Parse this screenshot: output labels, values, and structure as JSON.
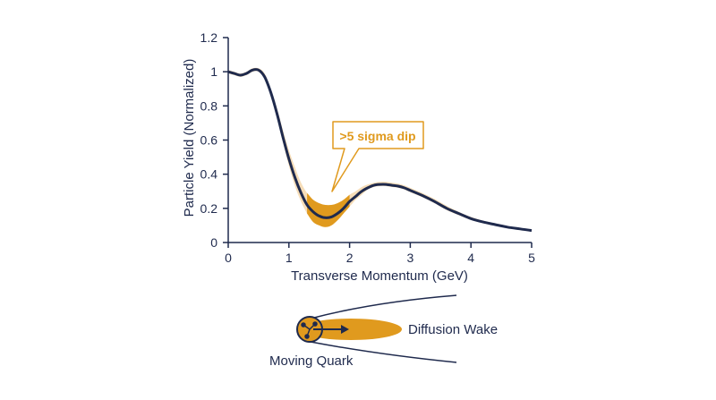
{
  "chart_data": {
    "type": "line",
    "title": "",
    "xlabel": "Transverse Momentum (GeV)",
    "ylabel": "Particle Yield (Normalized)",
    "xlim": [
      0,
      5
    ],
    "ylim": [
      0,
      1.2
    ],
    "x_ticks": [
      "0",
      "1",
      "2",
      "3",
      "4",
      "5"
    ],
    "y_ticks": [
      "0",
      "0.2",
      "0.4",
      "0.6",
      "0.8",
      "1",
      "1.2"
    ],
    "grid": false,
    "series": [
      {
        "x": [
          0,
          0.1,
          0.2,
          0.3,
          0.4,
          0.5,
          0.6,
          0.7,
          0.8,
          0.9,
          1.0,
          1.1,
          1.2,
          1.3,
          1.4,
          1.5,
          1.6,
          1.7,
          1.8,
          1.9,
          2.0,
          2.1,
          2.2,
          2.3,
          2.4,
          2.5,
          2.6,
          2.7,
          2.8,
          2.9,
          3.0,
          3.2,
          3.4,
          3.6,
          3.8,
          4.0,
          4.2,
          4.4,
          4.6,
          4.8,
          5.0
        ],
        "y": [
          1.0,
          0.99,
          0.98,
          0.99,
          1.01,
          1.01,
          0.97,
          0.88,
          0.76,
          0.62,
          0.49,
          0.38,
          0.29,
          0.22,
          0.18,
          0.155,
          0.145,
          0.15,
          0.17,
          0.2,
          0.24,
          0.27,
          0.3,
          0.32,
          0.335,
          0.34,
          0.34,
          0.335,
          0.33,
          0.32,
          0.305,
          0.275,
          0.24,
          0.2,
          0.17,
          0.14,
          0.12,
          0.105,
          0.09,
          0.08,
          0.07
        ],
        "band_lower": [
          0.99,
          0.98,
          0.97,
          0.98,
          1.0,
          1.0,
          0.96,
          0.87,
          0.74,
          0.59,
          0.45,
          0.33,
          0.24,
          0.17,
          0.12,
          0.1,
          0.09,
          0.1,
          0.13,
          0.17,
          0.21,
          0.25,
          0.28,
          0.31,
          0.325,
          0.33,
          0.33,
          0.325,
          0.32,
          0.31,
          0.295,
          0.265,
          0.23,
          0.19,
          0.16,
          0.132,
          0.113,
          0.098,
          0.085,
          0.075,
          0.065
        ],
        "band_upper": [
          1.01,
          1.0,
          0.99,
          1.0,
          1.02,
          1.02,
          0.99,
          0.9,
          0.79,
          0.66,
          0.54,
          0.44,
          0.35,
          0.29,
          0.25,
          0.23,
          0.22,
          0.22,
          0.23,
          0.25,
          0.28,
          0.3,
          0.325,
          0.34,
          0.35,
          0.355,
          0.355,
          0.35,
          0.345,
          0.335,
          0.32,
          0.29,
          0.255,
          0.215,
          0.18,
          0.15,
          0.128,
          0.112,
          0.097,
          0.086,
          0.076
        ]
      }
    ],
    "annotations": [
      {
        "text": ">5 sigma dip",
        "x": 1.65,
        "y": 0.3
      }
    ]
  },
  "diagram": {
    "moving_quark_label": "Moving Quark",
    "wake_label": "Diffusion Wake"
  },
  "colors": {
    "line": "#1f2a4d",
    "axis": "#1f2a4d",
    "band": "#f6ddb8",
    "dip_fill": "#e09a1e",
    "accent": "#e09a1e"
  }
}
